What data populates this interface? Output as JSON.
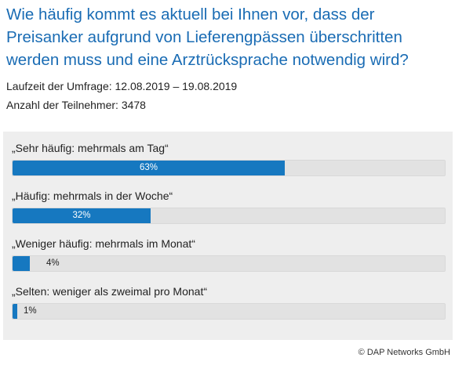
{
  "question": "Wie häufig kommt es aktuell bei Ihnen vor, dass der Preisanker aufgrund von Lieferengpässen überschritten werden muss und eine Arztrücksprache notwendig wird?",
  "meta": {
    "period": "Laufzeit der Umfrage: 12.08.2019 – 19.08.2019",
    "participants": "Anzahl der Teilnehmer: 3478"
  },
  "chart_data": {
    "type": "bar",
    "orientation": "horizontal",
    "categories": [
      "„Sehr häufig: mehrmals am Tag“",
      "„Häufig: mehrmals in der Woche“",
      "„Weniger häufig: mehrmals im Monat“",
      "„Selten: weniger als zweimal pro Monat“"
    ],
    "values": [
      63,
      32,
      4,
      1
    ],
    "value_labels": [
      "63%",
      "32%",
      "4%",
      "1%"
    ],
    "xlim": [
      0,
      100
    ],
    "bar_color": "#1678c0",
    "track_color": "#e2e2e2"
  },
  "copyright": "© DAP Networks GmbH"
}
